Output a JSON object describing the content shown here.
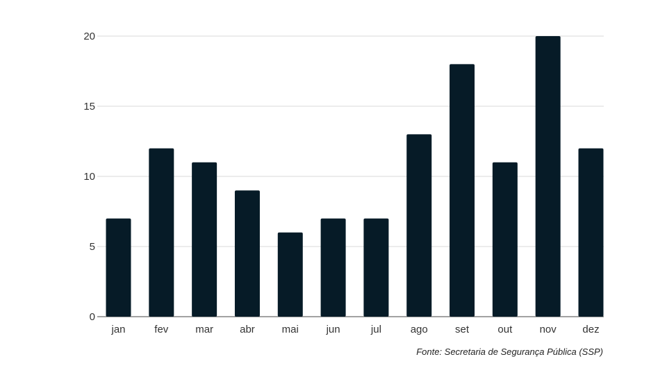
{
  "chart_data": {
    "type": "bar",
    "categories": [
      "jan",
      "fev",
      "mar",
      "abr",
      "mai",
      "jun",
      "jul",
      "ago",
      "set",
      "out",
      "nov",
      "dez"
    ],
    "values": [
      7,
      12,
      11,
      9,
      6,
      7,
      7,
      13,
      18,
      11,
      20,
      12
    ],
    "y_ticks": [
      "0",
      "5",
      "10",
      "15",
      "20"
    ],
    "ylim": [
      0,
      20
    ],
    "grid": true,
    "bar_color": "#061b27",
    "grid_color": "#d9d9d9",
    "source": "Fonte: Secretaria de Segurança Pública (SSP)"
  }
}
